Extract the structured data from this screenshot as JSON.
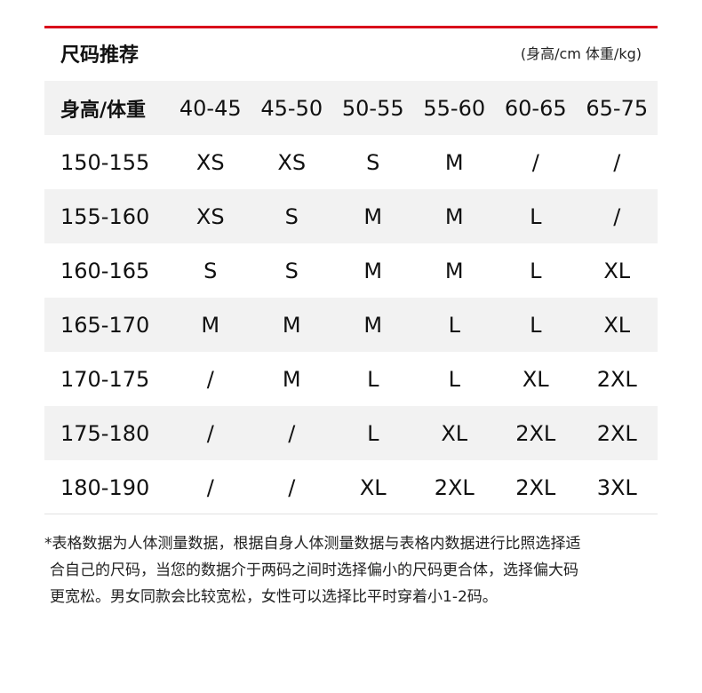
{
  "accent_color": "#d9001b",
  "title": "尺码推荐",
  "unit_note": "(身高/cm 体重/kg)",
  "table": {
    "headers": [
      "身高/体重",
      "40-45",
      "45-50",
      "50-55",
      "55-60",
      "60-65",
      "65-75"
    ],
    "rows": [
      [
        "150-155",
        "XS",
        "XS",
        "S",
        "M",
        "/",
        "/"
      ],
      [
        "155-160",
        "XS",
        "S",
        "M",
        "M",
        "L",
        "/"
      ],
      [
        "160-165",
        "S",
        "S",
        "M",
        "M",
        "L",
        "XL"
      ],
      [
        "165-170",
        "M",
        "M",
        "M",
        "L",
        "L",
        "XL"
      ],
      [
        "170-175",
        "/",
        "M",
        "L",
        "L",
        "XL",
        "2XL"
      ],
      [
        "175-180",
        "/",
        "/",
        "L",
        "XL",
        "2XL",
        "2XL"
      ],
      [
        "180-190",
        "/",
        "/",
        "XL",
        "2XL",
        "2XL",
        "3XL"
      ]
    ]
  },
  "footnote": [
    "*表格数据为人体测量数据，根据自身人体测量数据与表格内数据进行比照选择适",
    "合自己的尺码，当您的数据介于两码之间时选择偏小的尺码更合体，选择偏大码",
    "更宽松。男女同款会比较宽松，女性可以选择比平时穿着小1-2码。"
  ]
}
